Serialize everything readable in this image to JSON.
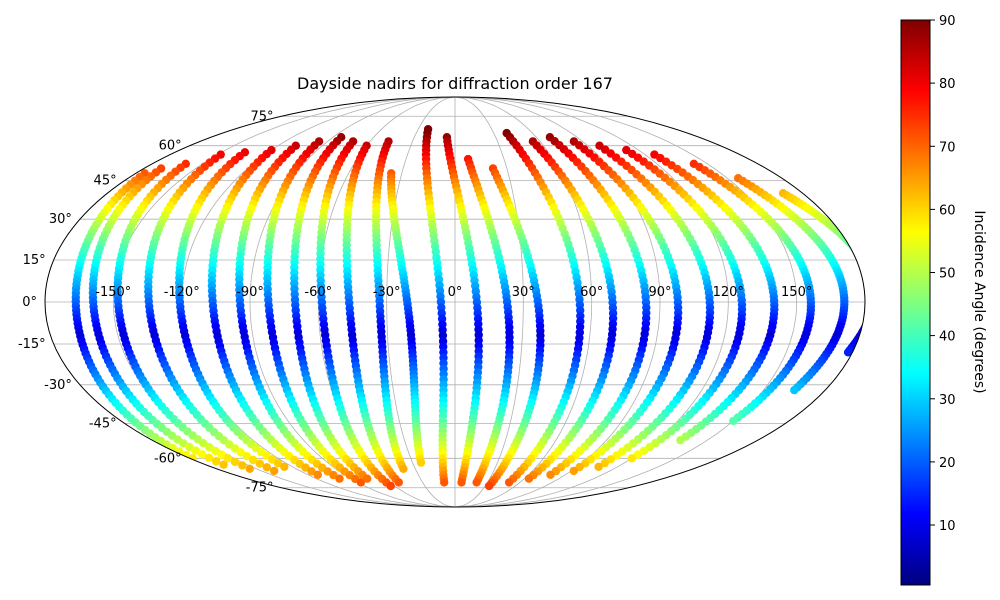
{
  "chart_data": {
    "type": "scatter",
    "projection": "mollweide",
    "title": "Dayside nadirs for diffraction order 167",
    "x_ticks": [
      "-150°",
      "-120°",
      "-90°",
      "-60°",
      "-30°",
      "0°",
      "30°",
      "60°",
      "90°",
      "120°",
      "150°"
    ],
    "y_ticks": [
      "75°",
      "60°",
      "45°",
      "30°",
      "15°",
      "0°",
      "-15°",
      "-30°",
      "-45°",
      "-60°",
      "-75°"
    ],
    "grid": true,
    "colorbar": {
      "label": "Incidence Angle (degrees)",
      "range": [
        0.5,
        90
      ],
      "ticks": [
        "90",
        "80",
        "70",
        "60",
        "50",
        "40",
        "30",
        "20",
        "10"
      ],
      "colormap": "jet",
      "colormap_stops": [
        "#00007f",
        "#0000ff",
        "#007fff",
        "#00ffff",
        "#7fff7f",
        "#ffff00",
        "#ff7f00",
        "#ff0000",
        "#7f0000"
      ]
    },
    "series": [
      {
        "lon_north": -175,
        "lon_south": -178,
        "lat_start": 48,
        "lat_end": -60
      },
      {
        "lon_north": -170,
        "lon_south": -167,
        "lat_start": 50,
        "lat_end": -63
      },
      {
        "lon_north": -160,
        "lon_south": -155,
        "lat_start": 52,
        "lat_end": -65
      },
      {
        "lon_north": -148,
        "lon_south": -140,
        "lat_start": 56,
        "lat_end": -66
      },
      {
        "lon_north": -135,
        "lon_south": -126,
        "lat_start": 57,
        "lat_end": -64
      },
      {
        "lon_north": -120,
        "lon_south": -112,
        "lat_start": 58,
        "lat_end": -68
      },
      {
        "lon_north": -108,
        "lon_south": -100,
        "lat_start": 60,
        "lat_end": -70
      },
      {
        "lon_north": -96,
        "lon_south": -87,
        "lat_start": 62,
        "lat_end": -72
      },
      {
        "lon_north": -84,
        "lon_south": -76,
        "lat_start": 64,
        "lat_end": -70
      },
      {
        "lon_north": -72,
        "lon_south": -64,
        "lat_start": 62,
        "lat_end": -74
      },
      {
        "lon_north": -60,
        "lon_south": -52,
        "lat_start": 60,
        "lat_end": -72
      },
      {
        "lon_north": -47,
        "lon_south": -39,
        "lat_start": 62,
        "lat_end": -65
      },
      {
        "lon_north": -36,
        "lon_south": -24,
        "lat_start": 48,
        "lat_end": -62
      },
      {
        "lon_north": -22,
        "lon_south": -10,
        "lat_start": 68,
        "lat_end": -72
      },
      {
        "lon_north": -6,
        "lon_south": 6,
        "lat_start": 64,
        "lat_end": -72
      },
      {
        "lon_north": 8,
        "lon_south": 20,
        "lat_start": 54,
        "lat_end": -72
      },
      {
        "lon_north": 22,
        "lon_south": 34,
        "lat_start": 50,
        "lat_end": -74
      },
      {
        "lon_north": 40,
        "lon_south": 50,
        "lat_start": 66,
        "lat_end": -72
      },
      {
        "lon_north": 55,
        "lon_south": 64,
        "lat_start": 62,
        "lat_end": -70
      },
      {
        "lon_north": 70,
        "lon_south": 78,
        "lat_start": 64,
        "lat_end": -68
      },
      {
        "lon_north": 84,
        "lon_south": 92,
        "lat_start": 62,
        "lat_end": -66
      },
      {
        "lon_north": 98,
        "lon_south": 106,
        "lat_start": 60,
        "lat_end": -64
      },
      {
        "lon_north": 112,
        "lon_south": 120,
        "lat_start": 58,
        "lat_end": -60
      },
      {
        "lon_north": 126,
        "lon_south": 134,
        "lat_start": 56,
        "lat_end": -52
      },
      {
        "lon_north": 142,
        "lon_south": 150,
        "lat_start": 52,
        "lat_end": -44
      },
      {
        "lon_north": 156,
        "lon_south": 165,
        "lat_start": 46,
        "lat_end": -32
      },
      {
        "lon_north": 170,
        "lon_south": 178,
        "lat_start": 40,
        "lat_end": -18
      }
    ]
  }
}
